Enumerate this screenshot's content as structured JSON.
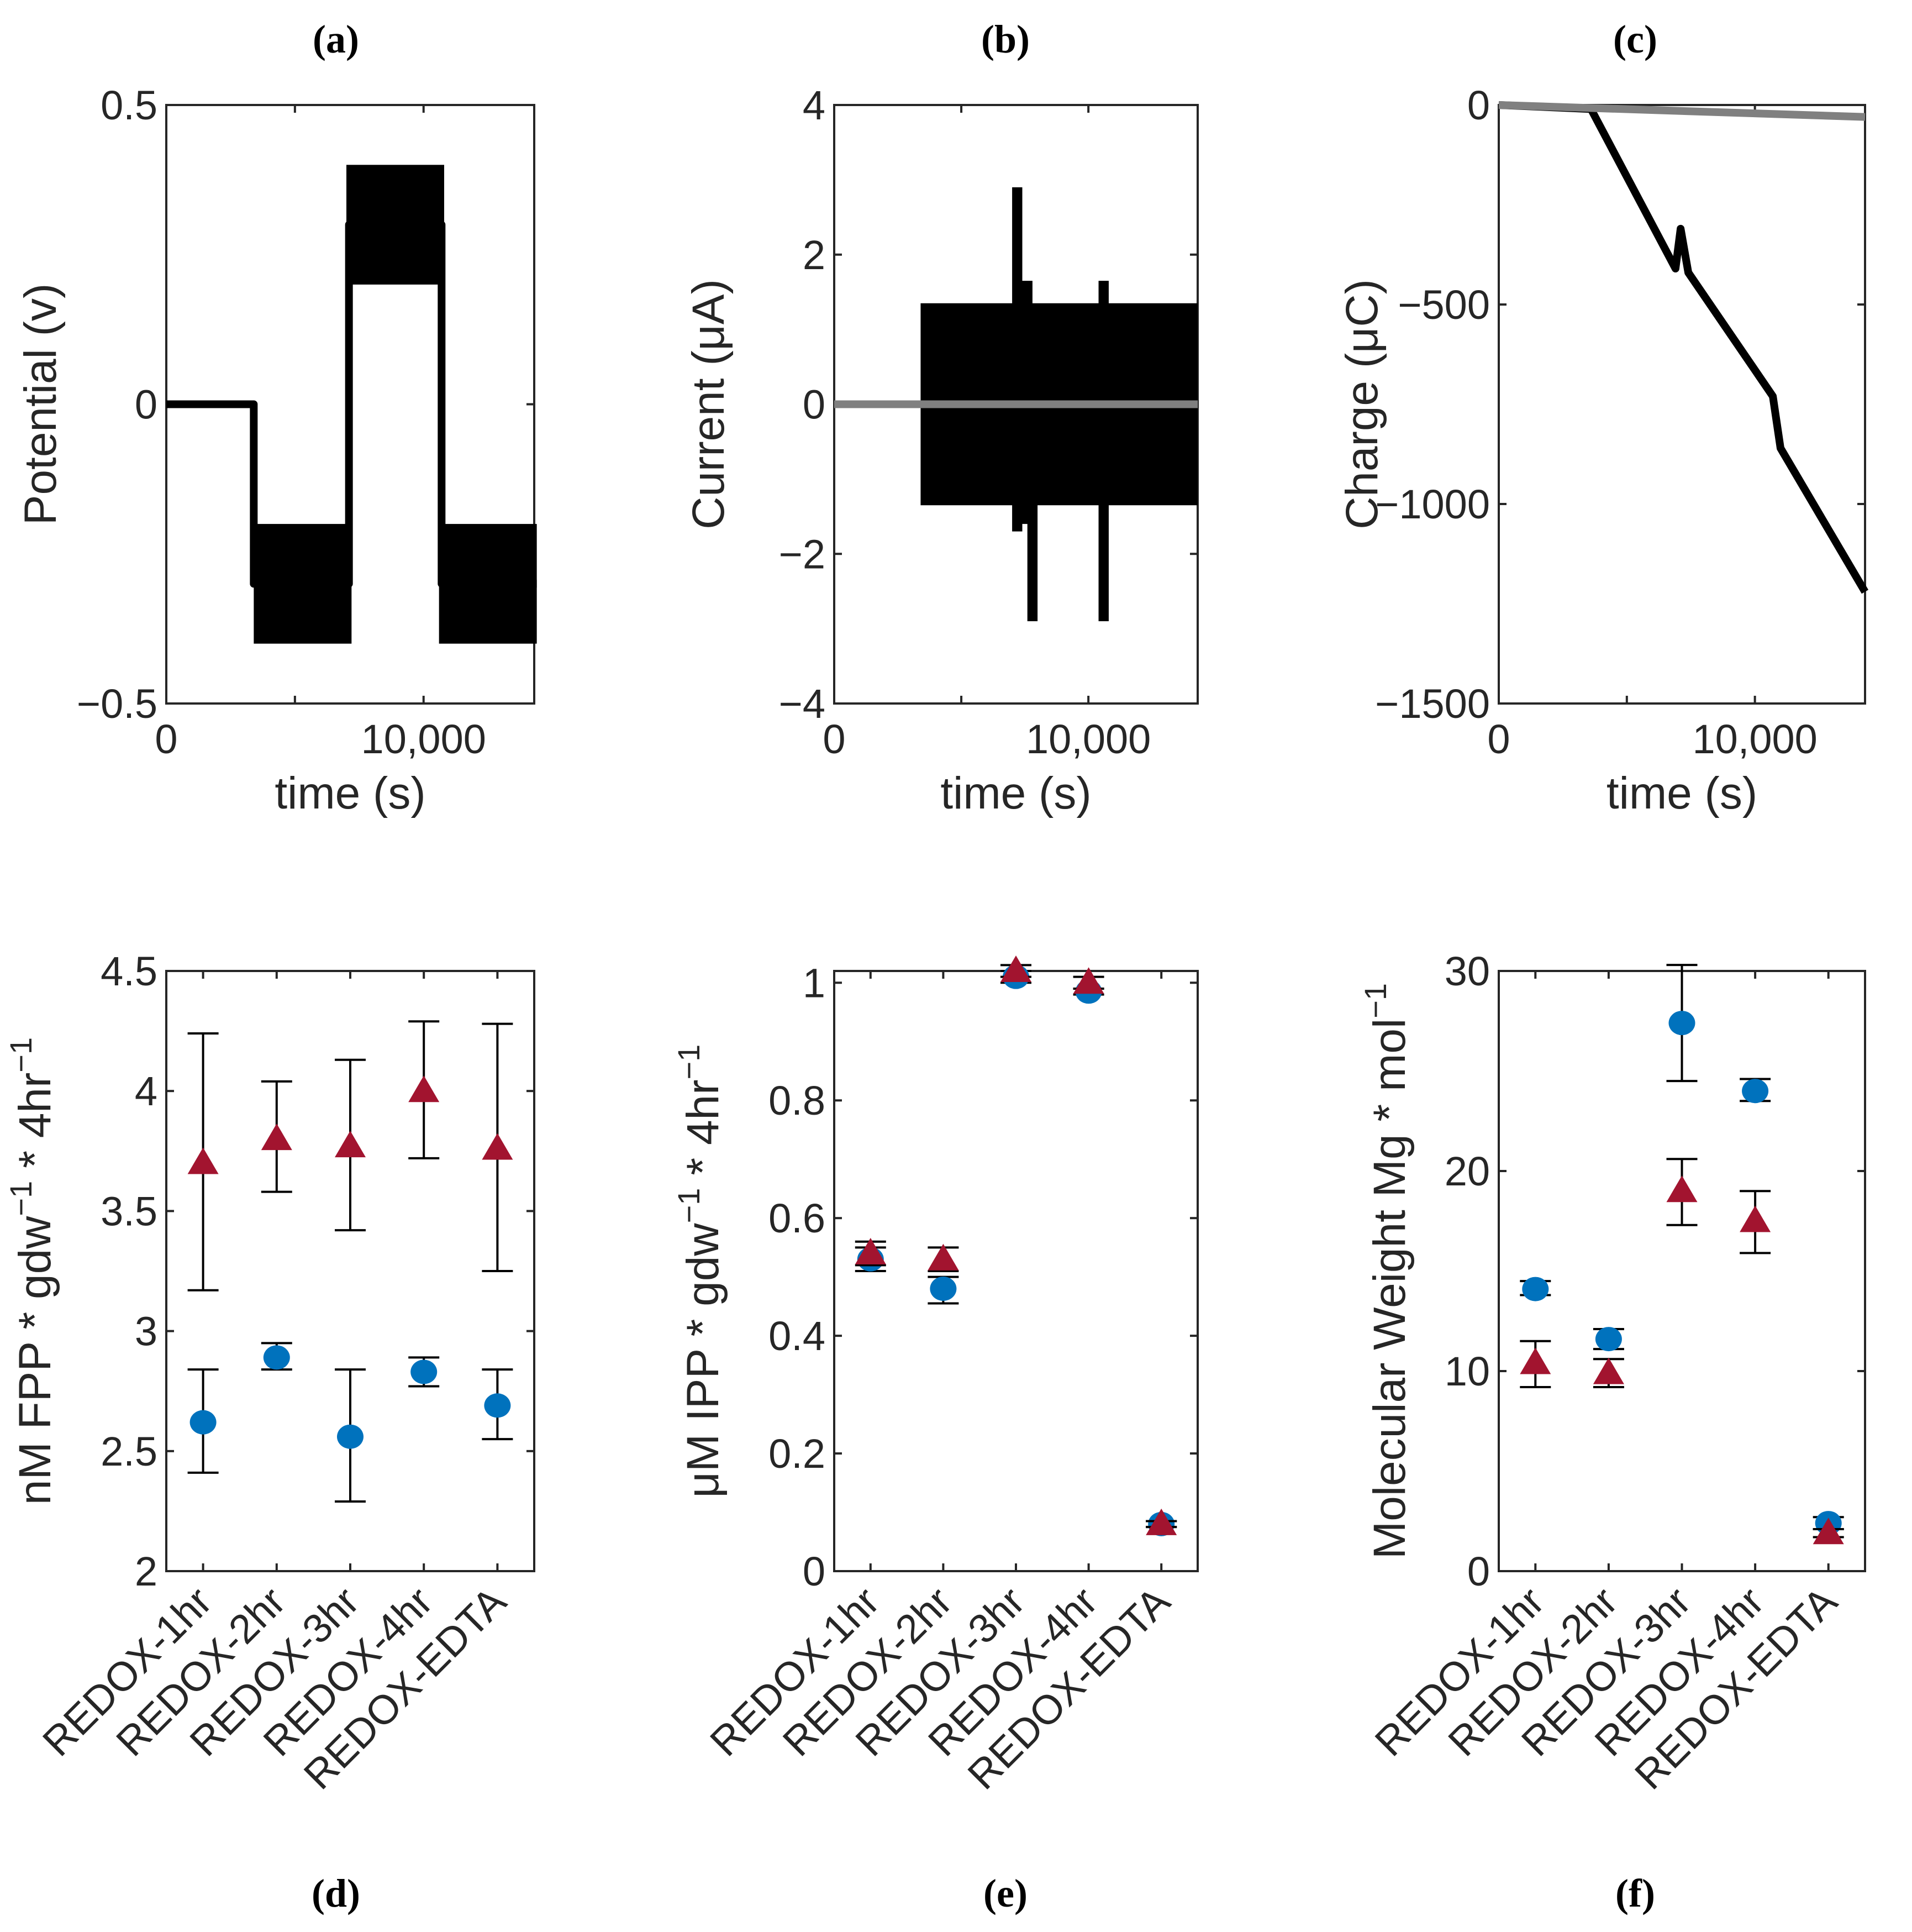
{
  "colors": {
    "circle": "#0072BD",
    "triangle": "#A2142F",
    "black": "#000000",
    "gray": "#808080",
    "axis": "#262626"
  },
  "chart_data": [
    {
      "panel": "(a)",
      "type": "line",
      "xlabel": "time (s)",
      "ylabel_parts": [
        {
          "t": "Potential (v)"
        }
      ],
      "xlim": [
        0,
        14300
      ],
      "ylim": [
        -0.5,
        0.5
      ],
      "xticks": [
        {
          "v": 0,
          "label": "0"
        },
        {
          "v": 10000,
          "label": "10,000"
        }
      ],
      "yticks": [
        {
          "v": -0.5,
          "label": "−0.5"
        },
        {
          "v": 0,
          "label": "0"
        },
        {
          "v": 0.5,
          "label": "0.5"
        }
      ],
      "series": [
        {
          "name": "potential",
          "color": "#000000",
          "width": 14,
          "points": [
            [
              0,
              0
            ],
            [
              3400,
              0
            ],
            [
              3400,
              -0.3
            ],
            [
              7100,
              -0.3
            ],
            [
              7100,
              0.3
            ],
            [
              10700,
              0.3
            ],
            [
              10700,
              -0.3
            ],
            [
              14400,
              -0.3
            ]
          ],
          "bands": [
            [
              3400,
              7200,
              -0.4,
              -0.2
            ],
            [
              7000,
              10800,
              0.2,
              0.4
            ],
            [
              10600,
              14400,
              -0.4,
              -0.2
            ]
          ]
        }
      ]
    },
    {
      "panel": "(b)",
      "type": "line",
      "xlabel": "time (s)",
      "ylabel_parts": [
        {
          "t": "Current (μA)"
        }
      ],
      "xlim": [
        0,
        14300
      ],
      "ylim": [
        -4,
        4
      ],
      "xticks": [
        {
          "v": 0,
          "label": "0"
        },
        {
          "v": 10000,
          "label": "10,000"
        }
      ],
      "yticks": [
        {
          "v": -4,
          "label": "−4"
        },
        {
          "v": -2,
          "label": "−2"
        },
        {
          "v": 0,
          "label": "0"
        },
        {
          "v": 2,
          "label": "2"
        },
        {
          "v": 4,
          "label": "4"
        }
      ],
      "series": [
        {
          "name": "current",
          "color": "#000000",
          "width": 14,
          "points": [],
          "bands": [
            [
              3400,
              14300,
              -1.35,
              1.35
            ],
            [
              7000,
              7400,
              -1.7,
              2.9
            ],
            [
              7400,
              7800,
              -1.6,
              1.65
            ],
            [
              7600,
              8000,
              -2.9,
              0
            ],
            [
              10400,
              10800,
              -2.9,
              1.65
            ]
          ]
        },
        {
          "name": "control",
          "color": "#808080",
          "width": 14,
          "points": [
            [
              0,
              0
            ],
            [
              14300,
              0
            ]
          ],
          "bands": []
        }
      ]
    },
    {
      "panel": "(c)",
      "type": "line",
      "xlabel": "time (s)",
      "ylabel_parts": [
        {
          "t": "Charge (μC)"
        }
      ],
      "xlim": [
        0,
        14300
      ],
      "ylim": [
        -1500,
        0
      ],
      "xticks": [
        {
          "v": 0,
          "label": "0"
        },
        {
          "v": 10000,
          "label": "10,000"
        }
      ],
      "yticks": [
        {
          "v": -1500,
          "label": "−1500"
        },
        {
          "v": -1000,
          "label": "−1000"
        },
        {
          "v": -500,
          "label": "−500"
        },
        {
          "v": 0,
          "label": "0"
        }
      ],
      "series": [
        {
          "name": "charge",
          "color": "#000000",
          "width": 14,
          "points": [
            [
              0,
              0
            ],
            [
              3600,
              -10
            ],
            [
              6900,
              -410
            ],
            [
              7100,
              -310
            ],
            [
              7400,
              -420
            ],
            [
              10700,
              -730
            ],
            [
              11000,
              -860
            ],
            [
              14300,
              -1220
            ]
          ],
          "bands": []
        },
        {
          "name": "control",
          "color": "#808080",
          "width": 14,
          "points": [
            [
              0,
              0
            ],
            [
              14300,
              -30
            ]
          ],
          "bands": []
        }
      ]
    },
    {
      "panel": "(d)",
      "type": "scatter",
      "categories": [
        "REDOX-1hr",
        "REDOX-2hr",
        "REDOX-3hr",
        "REDOX-4hr",
        "REDOX-EDTA"
      ],
      "ylabel_parts": [
        {
          "t": "nM FPP * gdw"
        },
        {
          "t": "−1",
          "sup": true
        },
        {
          "t": " * 4hr"
        },
        {
          "t": "−1",
          "sup": true
        }
      ],
      "ylim": [
        2,
        4.5
      ],
      "yticks": [
        {
          "v": 2,
          "label": "2"
        },
        {
          "v": 2.5,
          "label": "2.5"
        },
        {
          "v": 3,
          "label": "3"
        },
        {
          "v": 3.5,
          "label": "3.5"
        },
        {
          "v": 4,
          "label": "4"
        },
        {
          "v": 4.5,
          "label": "4.5"
        }
      ],
      "series": [
        {
          "name": "triangle",
          "marker": "triangle",
          "color": "#A2142F",
          "values": [
            3.7,
            3.8,
            3.77,
            4.0,
            3.76
          ],
          "err": [
            [
              3.17,
              4.24
            ],
            [
              3.58,
              4.04
            ],
            [
              3.42,
              4.13
            ],
            [
              3.72,
              4.29
            ],
            [
              3.25,
              4.28
            ]
          ]
        },
        {
          "name": "circle",
          "marker": "circle",
          "color": "#0072BD",
          "values": [
            2.62,
            2.89,
            2.56,
            2.83,
            2.69
          ],
          "err": [
            [
              2.41,
              2.84
            ],
            [
              2.84,
              2.95
            ],
            [
              2.29,
              2.84
            ],
            [
              2.77,
              2.89
            ],
            [
              2.55,
              2.84
            ]
          ]
        }
      ]
    },
    {
      "panel": "(e)",
      "type": "scatter",
      "categories": [
        "REDOX-1hr",
        "REDOX-2hr",
        "REDOX-3hr",
        "REDOX-4hr",
        "REDOX-EDTA"
      ],
      "ylabel_parts": [
        {
          "t": "μM IPP * gdw"
        },
        {
          "t": "−1",
          "sup": true
        },
        {
          "t": " * 4hr"
        },
        {
          "t": "−1",
          "sup": true
        }
      ],
      "ylim": [
        0,
        1.02
      ],
      "yticks": [
        {
          "v": 0,
          "label": "0"
        },
        {
          "v": 0.2,
          "label": "0.2"
        },
        {
          "v": 0.4,
          "label": "0.4"
        },
        {
          "v": 0.6,
          "label": "0.6"
        },
        {
          "v": 0.8,
          "label": "0.8"
        },
        {
          "v": 1,
          "label": "1"
        }
      ],
      "series": [
        {
          "name": "circle",
          "marker": "circle",
          "color": "#0072BD",
          "values": [
            0.53,
            0.48,
            1.01,
            0.985,
            0.08
          ],
          "err": [
            [
              0.51,
              0.55
            ],
            [
              0.455,
              0.5
            ],
            [
              1.0,
              1.02
            ],
            [
              0.98,
              0.99
            ],
            [
              0.075,
              0.085
            ]
          ]
        },
        {
          "name": "triangle",
          "marker": "triangle",
          "color": "#A2142F",
          "values": [
            0.54,
            0.53,
            1.02,
            1.0,
            0.08
          ],
          "err": [
            [
              0.52,
              0.56
            ],
            [
              0.51,
              0.55
            ],
            [
              1.01,
              1.03
            ],
            [
              0.99,
              1.01
            ],
            [
              0.075,
              0.085
            ]
          ]
        }
      ]
    },
    {
      "panel": "(f)",
      "type": "scatter",
      "categories": [
        "REDOX-1hr",
        "REDOX-2hr",
        "REDOX-3hr",
        "REDOX-4hr",
        "REDOX-EDTA"
      ],
      "ylabel_parts": [
        {
          "t": "Molecular Weight Mg * mol"
        },
        {
          "t": "−1",
          "sup": true
        }
      ],
      "ylim": [
        0,
        30
      ],
      "yticks": [
        {
          "v": 0,
          "label": "0"
        },
        {
          "v": 10,
          "label": "10"
        },
        {
          "v": 20,
          "label": "20"
        },
        {
          "v": 30,
          "label": "30"
        }
      ],
      "series": [
        {
          "name": "circle",
          "marker": "circle",
          "color": "#0072BD",
          "values": [
            14.1,
            11.6,
            27.4,
            24.0,
            2.4
          ],
          "err": [
            [
              13.8,
              14.5
            ],
            [
              11.1,
              12.1
            ],
            [
              24.5,
              30.3
            ],
            [
              23.5,
              24.6
            ],
            [
              2.1,
              2.7
            ]
          ]
        },
        {
          "name": "triangle",
          "marker": "triangle",
          "color": "#A2142F",
          "values": [
            10.4,
            9.9,
            19.0,
            17.5,
            1.9
          ],
          "err": [
            [
              9.2,
              11.5
            ],
            [
              9.2,
              10.6
            ],
            [
              17.3,
              20.6
            ],
            [
              15.9,
              19.0
            ],
            [
              1.7,
              2.1
            ]
          ]
        }
      ]
    }
  ]
}
